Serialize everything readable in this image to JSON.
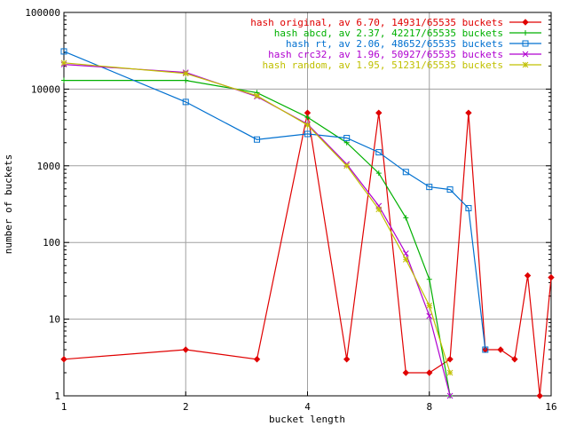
{
  "chart_data": {
    "type": "line",
    "title": "",
    "xlabel": "bucket length",
    "ylabel": "number of buckets",
    "x_scale": "log2",
    "y_scale": "log10",
    "xlim": [
      1,
      16
    ],
    "ylim": [
      1,
      100000
    ],
    "x_ticks": [
      {
        "value": 1,
        "label": "1"
      },
      {
        "value": 2,
        "label": "2"
      },
      {
        "value": 4,
        "label": "4"
      },
      {
        "value": 8,
        "label": "8"
      },
      {
        "value": 16,
        "label": "16"
      }
    ],
    "y_ticks": [
      {
        "value": 1,
        "label": "1"
      },
      {
        "value": 10,
        "label": "10"
      },
      {
        "value": 100,
        "label": "100"
      },
      {
        "value": 1000,
        "label": "1000"
      },
      {
        "value": 10000,
        "label": "10000"
      },
      {
        "value": 100000,
        "label": "100000"
      }
    ],
    "grid": true,
    "legend_position": "top-right",
    "series": [
      {
        "name": "hash original, av 6.70, 14931/65535 buckets",
        "color": "#e00000",
        "marker": "diamond",
        "x": [
          1,
          2,
          3,
          4,
          5,
          6,
          7,
          8,
          9,
          10,
          11,
          12,
          13,
          14,
          15,
          16
        ],
        "y": [
          3,
          4,
          3,
          4900,
          3,
          4900,
          2,
          2,
          3,
          4900,
          4,
          4,
          3,
          37,
          1,
          35
        ]
      },
      {
        "name": "hash abcd, av 2.37, 42217/65535 buckets",
        "color": "#00b000",
        "marker": "plus",
        "x": [
          1,
          2,
          3,
          4,
          5,
          6,
          7,
          8,
          9
        ],
        "y": [
          13000,
          13000,
          9000,
          4300,
          2000,
          800,
          210,
          33,
          1
        ]
      },
      {
        "name": "hash rt, av 2.06, 48652/65535 buckets",
        "color": "#0070d0",
        "marker": "square",
        "x": [
          1,
          2,
          3,
          4,
          5,
          6,
          7,
          8,
          9,
          10,
          11
        ],
        "y": [
          31000,
          6800,
          2200,
          2600,
          2300,
          1500,
          830,
          530,
          490,
          280,
          4
        ]
      },
      {
        "name": "hash crc32, av 1.96, 50927/65535 buckets",
        "color": "#b000d0",
        "marker": "cross",
        "x": [
          1,
          2,
          3,
          4,
          5,
          6,
          7,
          8,
          9
        ],
        "y": [
          21000,
          16500,
          8000,
          3500,
          1050,
          300,
          72,
          11,
          1
        ]
      },
      {
        "name": "hash random, av 1.95, 51231/65535 buckets",
        "color": "#c0c000",
        "marker": "star",
        "x": [
          1,
          2,
          3,
          4,
          5,
          6,
          7,
          8,
          9
        ],
        "y": [
          22000,
          16000,
          8200,
          3400,
          1000,
          270,
          60,
          15,
          2
        ]
      }
    ]
  }
}
